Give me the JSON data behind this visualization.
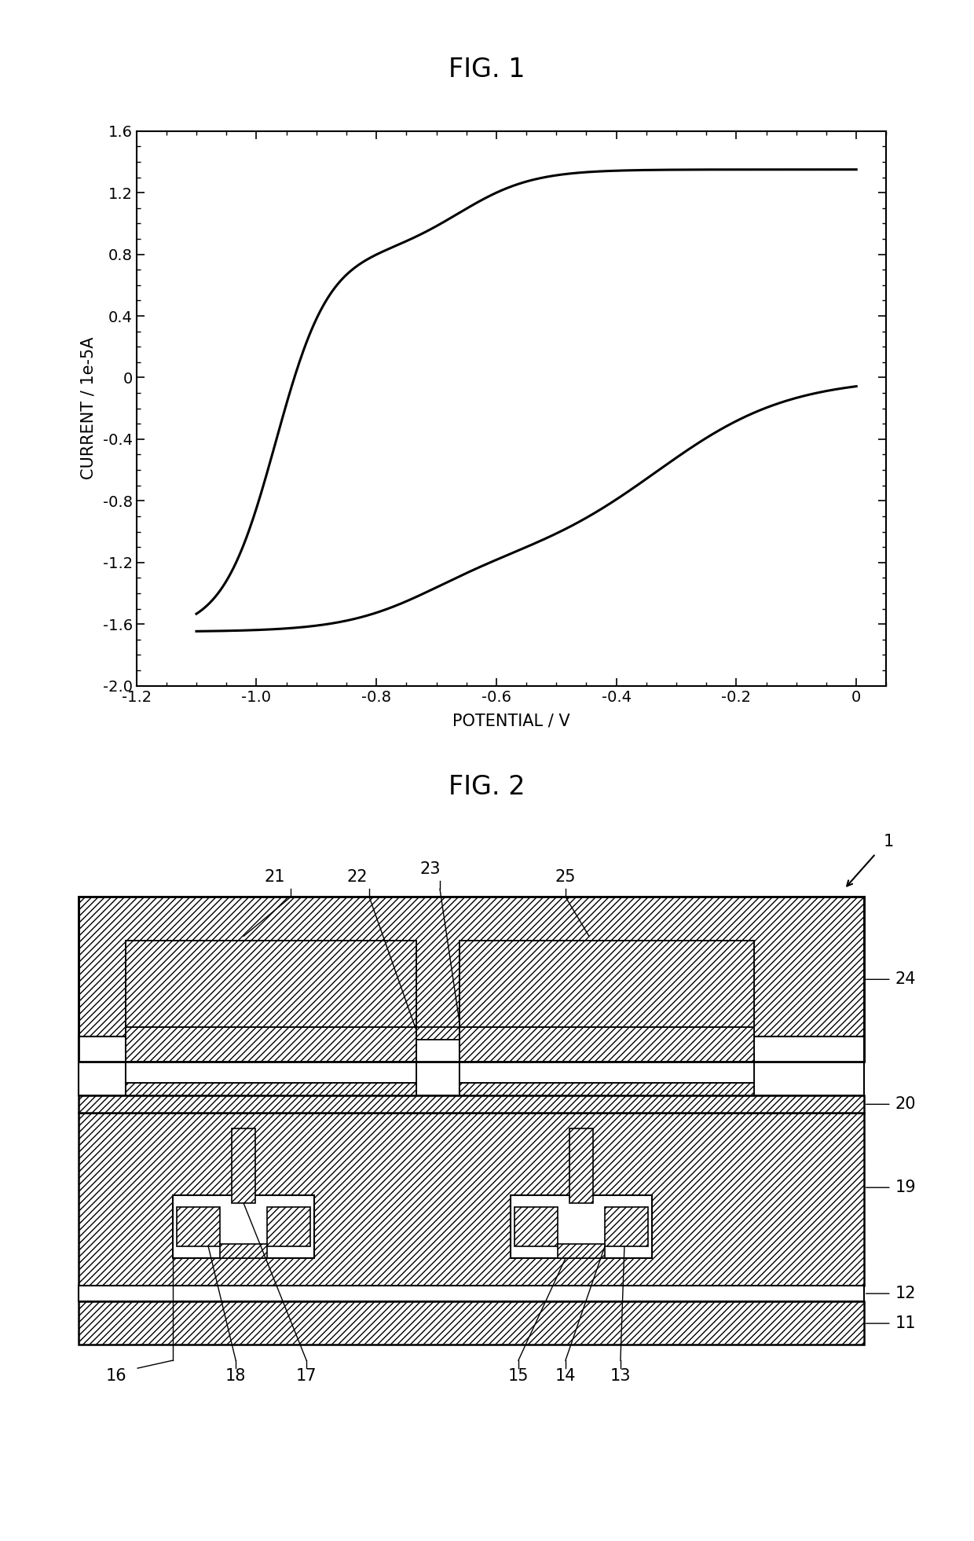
{
  "fig1_title": "FIG. 1",
  "fig2_title": "FIG. 2",
  "xlabel": "POTENTIAL / V",
  "ylabel": "CURRENT / 1e-5A",
  "xlim": [
    -1.2,
    0.05
  ],
  "ylim": [
    -2.0,
    1.6
  ],
  "xticks": [
    -1.2,
    -1.0,
    -0.8,
    -0.6,
    -0.4,
    -0.2,
    0.0
  ],
  "yticks": [
    -2.0,
    -1.6,
    -1.2,
    -0.8,
    -0.4,
    0.0,
    0.4,
    0.8,
    1.2,
    1.6
  ],
  "line_color": "#000000",
  "line_width": 2.2,
  "bg_color": "#ffffff",
  "label_fontsize": 15,
  "title_fontsize": 24,
  "tick_fontsize": 14
}
